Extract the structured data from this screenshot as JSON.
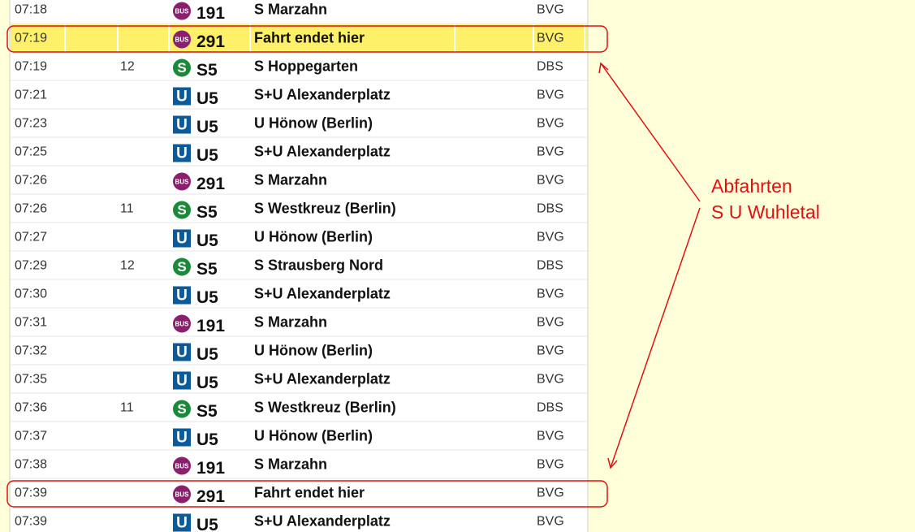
{
  "rows": [
    {
      "time": "07:18",
      "icon": "BUS",
      "line": "191",
      "destination": "S Marzahn",
      "operator": "BVG"
    },
    {
      "time": "07:19",
      "icon": "BUS",
      "line": "291",
      "destination": "Fahrt endet hier",
      "operator": "BVG",
      "highlighted": true,
      "marked": true
    },
    {
      "time": "07:19",
      "platform": "12",
      "icon": "S",
      "line": "S5",
      "destination": "S Hoppegarten",
      "operator": "DBS"
    },
    {
      "time": "07:21",
      "icon": "U",
      "line": "U5",
      "destination": "S+U Alexanderplatz",
      "operator": "BVG"
    },
    {
      "time": "07:23",
      "icon": "U",
      "line": "U5",
      "destination": "U Hönow (Berlin)",
      "operator": "BVG"
    },
    {
      "time": "07:25",
      "icon": "U",
      "line": "U5",
      "destination": "S+U Alexanderplatz",
      "operator": "BVG"
    },
    {
      "time": "07:26",
      "icon": "BUS",
      "line": "291",
      "destination": "S Marzahn",
      "operator": "BVG"
    },
    {
      "time": "07:26",
      "platform": "11",
      "icon": "S",
      "line": "S5",
      "destination": "S Westkreuz (Berlin)",
      "operator": "DBS"
    },
    {
      "time": "07:27",
      "icon": "U",
      "line": "U5",
      "destination": "U Hönow (Berlin)",
      "operator": "BVG"
    },
    {
      "time": "07:29",
      "platform": "12",
      "icon": "S",
      "line": "S5",
      "destination": "S Strausberg Nord",
      "operator": "DBS"
    },
    {
      "time": "07:30",
      "icon": "U",
      "line": "U5",
      "destination": "S+U Alexanderplatz",
      "operator": "BVG"
    },
    {
      "time": "07:31",
      "icon": "BUS",
      "line": "191",
      "destination": "S Marzahn",
      "operator": "BVG"
    },
    {
      "time": "07:32",
      "icon": "U",
      "line": "U5",
      "destination": "U Hönow (Berlin)",
      "operator": "BVG"
    },
    {
      "time": "07:35",
      "icon": "U",
      "line": "U5",
      "destination": "S+U Alexanderplatz",
      "operator": "BVG"
    },
    {
      "time": "07:36",
      "platform": "11",
      "icon": "S",
      "line": "S5",
      "destination": "S Westkreuz (Berlin)",
      "operator": "DBS"
    },
    {
      "time": "07:37",
      "icon": "U",
      "line": "U5",
      "destination": "U Hönow (Berlin)",
      "operator": "BVG"
    },
    {
      "time": "07:38",
      "icon": "BUS",
      "line": "191",
      "destination": "S Marzahn",
      "operator": "BVG"
    },
    {
      "time": "07:39",
      "icon": "BUS",
      "line": "291",
      "destination": "Fahrt endet hier",
      "operator": "BVG",
      "marked": true
    },
    {
      "time": "07:39",
      "icon": "U",
      "line": "U5",
      "destination": "S+U Alexanderplatz",
      "operator": "BVG"
    }
  ],
  "annotation": [
    "Abfahrten",
    "S U Wuhletal"
  ]
}
